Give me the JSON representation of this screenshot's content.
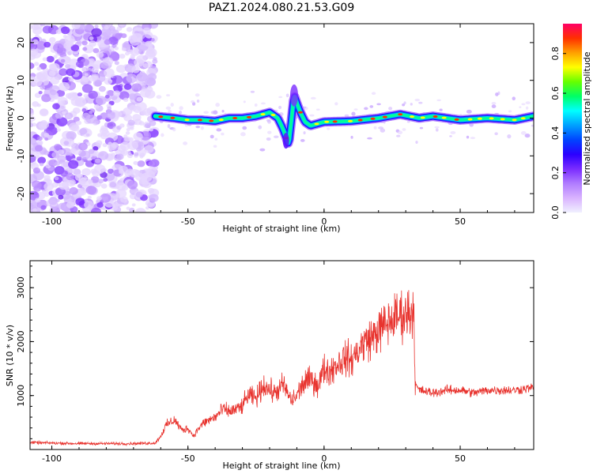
{
  "title": "PAZ1.2024.080.21.53.G09",
  "chart_data": [
    {
      "type": "heatmap",
      "title": "PAZ1.2024.080.21.53.G09",
      "xlabel": "Height of straight line (km)",
      "ylabel": "Frequency (Hz)",
      "xlim": [
        -108,
        77
      ],
      "ylim": [
        -25,
        25
      ],
      "xticks": [
        -100,
        -50,
        0,
        50
      ],
      "yticks": [
        -20,
        -10,
        0,
        10,
        20
      ],
      "colorbar": {
        "label": "Normalized spectral amplitude",
        "range": [
          0,
          0.95
        ],
        "ticks": [
          "0.0",
          "0.2",
          "0.4",
          "0.6",
          "0.8"
        ],
        "colormap": [
          "#f0f0ff",
          "#d9b3ff",
          "#b07cff",
          "#7a2cff",
          "#2b00ff",
          "#0044ff",
          "#00a0ff",
          "#00ffff",
          "#00ff66",
          "#66ff00",
          "#ffff00",
          "#ffa000",
          "#ff3000",
          "#ff0066"
        ]
      },
      "signal_track": [
        {
          "x": -62,
          "y": 0.5
        },
        {
          "x": -55,
          "y": 0.0
        },
        {
          "x": -50,
          "y": -0.5
        },
        {
          "x": -45,
          "y": -0.5
        },
        {
          "x": -40,
          "y": -0.8
        },
        {
          "x": -35,
          "y": 0.0
        },
        {
          "x": -30,
          "y": 0.0
        },
        {
          "x": -25,
          "y": 0.5
        },
        {
          "x": -20,
          "y": 1.5
        },
        {
          "x": -17,
          "y": 0.0
        },
        {
          "x": -15,
          "y": -3.0
        },
        {
          "x": -13,
          "y": -7.0
        },
        {
          "x": -11,
          "y": 6.0
        },
        {
          "x": -9,
          "y": 2.0
        },
        {
          "x": -7,
          "y": -1.0
        },
        {
          "x": -5,
          "y": -2.0
        },
        {
          "x": 0,
          "y": -1.0
        },
        {
          "x": 10,
          "y": -0.8
        },
        {
          "x": 20,
          "y": 0.0
        },
        {
          "x": 28,
          "y": 1.0
        },
        {
          "x": 35,
          "y": 0.0
        },
        {
          "x": 40,
          "y": 0.5
        },
        {
          "x": 50,
          "y": -0.5
        },
        {
          "x": 60,
          "y": 0.0
        },
        {
          "x": 70,
          "y": -0.5
        },
        {
          "x": 77,
          "y": 0.5
        }
      ]
    },
    {
      "type": "line",
      "xlabel": "Height of straight line (km)",
      "ylabel": "SNR (10 * v/v)",
      "xlim": [
        -108,
        77
      ],
      "ylim": [
        0,
        3500
      ],
      "xticks": [
        -100,
        -50,
        0,
        50
      ],
      "yticks": [
        1000,
        2000,
        3000
      ],
      "color": "#e8332e",
      "series": [
        {
          "x": [
            -108,
            -100,
            -90,
            -80,
            -70,
            -62,
            -60,
            -58,
            -55,
            -52,
            -50,
            -48,
            -46,
            -44,
            -42,
            -40,
            -37,
            -35,
            -32,
            -30,
            -28,
            -25,
            -22,
            -20,
            -18,
            -15,
            -12,
            -10,
            -8,
            -5,
            -2,
            0,
            2,
            5,
            8,
            10,
            12,
            15,
            18,
            20,
            22,
            25,
            28,
            30,
            31,
            32,
            33,
            33.5,
            35,
            40,
            45,
            50,
            55,
            60,
            65,
            70,
            77
          ],
          "y": [
            130,
            120,
            110,
            110,
            110,
            120,
            250,
            450,
            550,
            350,
            400,
            250,
            400,
            500,
            550,
            600,
            750,
            700,
            750,
            800,
            1000,
            950,
            1200,
            1100,
            1050,
            1200,
            900,
            1000,
            1200,
            1300,
            1200,
            1500,
            1450,
            1600,
            1700,
            1650,
            1800,
            2000,
            2100,
            2200,
            2300,
            2400,
            2500,
            2500,
            2550,
            2550,
            2600,
            1200,
            1100,
            1050,
            1100,
            1100,
            1050,
            1100,
            1100,
            1100,
            1150
          ]
        }
      ]
    }
  ]
}
